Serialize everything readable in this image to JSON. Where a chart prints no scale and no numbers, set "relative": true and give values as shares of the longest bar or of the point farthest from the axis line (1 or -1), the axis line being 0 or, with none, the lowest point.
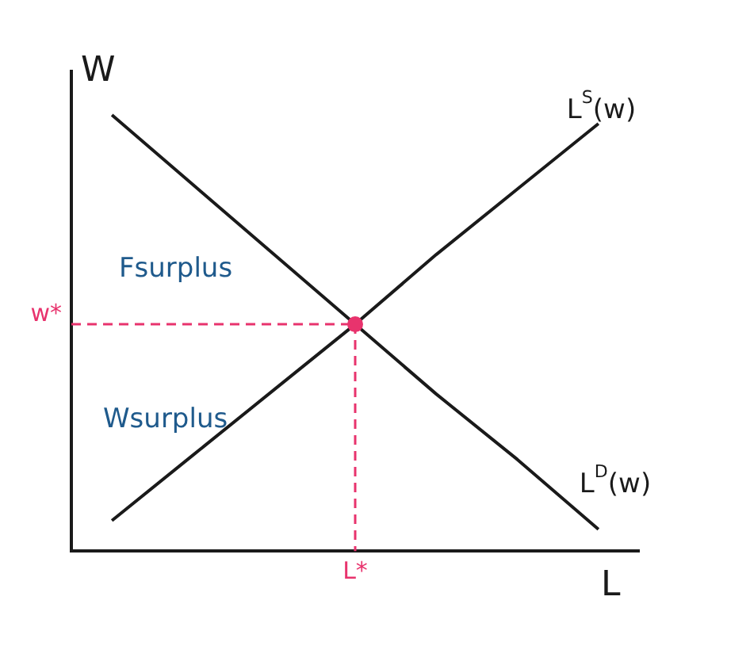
{
  "chart_data": {
    "type": "line",
    "relative": true,
    "xlabel": "L",
    "ylabel": "W",
    "categories": [
      null,
      null,
      null,
      null,
      null,
      null,
      null
    ],
    "series": [
      {
        "name": "L$^{D}$(w)",
        "color": "#1a1a1a",
        "values": [
          1,
          0.84,
          0.68,
          0.52,
          0.36,
          0.21,
          0.05
        ]
      },
      {
        "name": "L$^{S}$(w)",
        "color": "#1a1a1a",
        "values": [
          0.07,
          0.22,
          0.37,
          0.52,
          0.68,
          0.83,
          0.98
        ]
      }
    ],
    "ref_lines": [
      {
        "axis": "y",
        "value": 0.52,
        "label": "w*",
        "color": "#e8336d",
        "line_style": "dashed"
      }
    ],
    "annotations": [
      "Fsurplus",
      "Wsurplus",
      "L*"
    ],
    "marker": "none",
    "line_style": "solid",
    "grid": false,
    "legend": false
  }
}
